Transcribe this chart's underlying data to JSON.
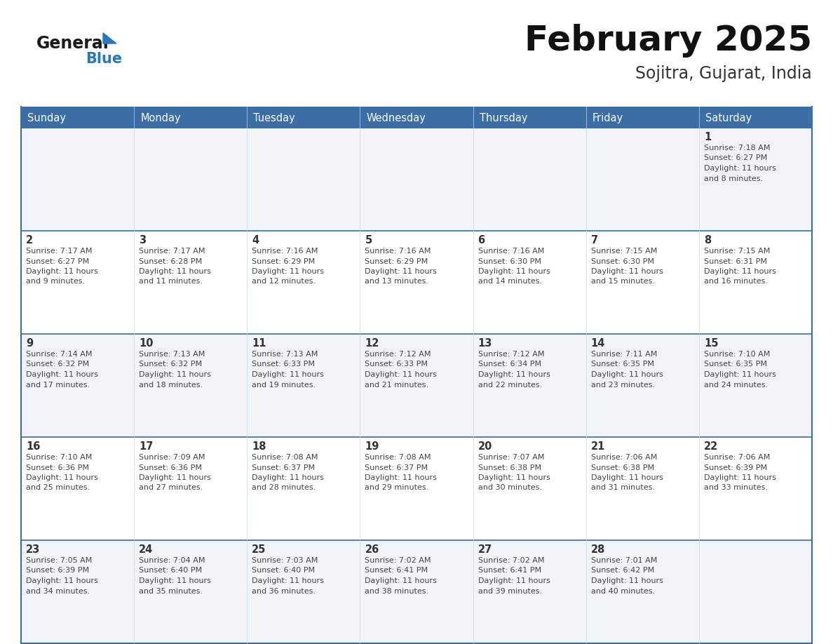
{
  "title": "February 2025",
  "subtitle": "Sojitra, Gujarat, India",
  "days_header": [
    "Sunday",
    "Monday",
    "Tuesday",
    "Wednesday",
    "Thursday",
    "Friday",
    "Saturday"
  ],
  "header_bg": "#3a6ea5",
  "header_text_color": "#ffffff",
  "cell_bg_row0": "#f0f4f8",
  "cell_bg_row1": "#ffffff",
  "cell_bg_row2": "#f0f4f8",
  "cell_bg_row3": "#ffffff",
  "cell_bg_row4": "#f0f4f8",
  "border_color": "#3a6ea5",
  "inner_line_color": "#a0b8d0",
  "day_number_color": "#333333",
  "text_color": "#444444",
  "title_color": "#111111",
  "subtitle_color": "#333333",
  "logo_general_color": "#1a1a1a",
  "logo_blue_color": "#2878be",
  "calendar_data": [
    {
      "day": 1,
      "col": 6,
      "row": 0,
      "sunrise": "7:18 AM",
      "sunset": "6:27 PM",
      "daylight_hours": 11,
      "daylight_minutes": 8
    },
    {
      "day": 2,
      "col": 0,
      "row": 1,
      "sunrise": "7:17 AM",
      "sunset": "6:27 PM",
      "daylight_hours": 11,
      "daylight_minutes": 9
    },
    {
      "day": 3,
      "col": 1,
      "row": 1,
      "sunrise": "7:17 AM",
      "sunset": "6:28 PM",
      "daylight_hours": 11,
      "daylight_minutes": 11
    },
    {
      "day": 4,
      "col": 2,
      "row": 1,
      "sunrise": "7:16 AM",
      "sunset": "6:29 PM",
      "daylight_hours": 11,
      "daylight_minutes": 12
    },
    {
      "day": 5,
      "col": 3,
      "row": 1,
      "sunrise": "7:16 AM",
      "sunset": "6:29 PM",
      "daylight_hours": 11,
      "daylight_minutes": 13
    },
    {
      "day": 6,
      "col": 4,
      "row": 1,
      "sunrise": "7:16 AM",
      "sunset": "6:30 PM",
      "daylight_hours": 11,
      "daylight_minutes": 14
    },
    {
      "day": 7,
      "col": 5,
      "row": 1,
      "sunrise": "7:15 AM",
      "sunset": "6:30 PM",
      "daylight_hours": 11,
      "daylight_minutes": 15
    },
    {
      "day": 8,
      "col": 6,
      "row": 1,
      "sunrise": "7:15 AM",
      "sunset": "6:31 PM",
      "daylight_hours": 11,
      "daylight_minutes": 16
    },
    {
      "day": 9,
      "col": 0,
      "row": 2,
      "sunrise": "7:14 AM",
      "sunset": "6:32 PM",
      "daylight_hours": 11,
      "daylight_minutes": 17
    },
    {
      "day": 10,
      "col": 1,
      "row": 2,
      "sunrise": "7:13 AM",
      "sunset": "6:32 PM",
      "daylight_hours": 11,
      "daylight_minutes": 18
    },
    {
      "day": 11,
      "col": 2,
      "row": 2,
      "sunrise": "7:13 AM",
      "sunset": "6:33 PM",
      "daylight_hours": 11,
      "daylight_minutes": 19
    },
    {
      "day": 12,
      "col": 3,
      "row": 2,
      "sunrise": "7:12 AM",
      "sunset": "6:33 PM",
      "daylight_hours": 11,
      "daylight_minutes": 21
    },
    {
      "day": 13,
      "col": 4,
      "row": 2,
      "sunrise": "7:12 AM",
      "sunset": "6:34 PM",
      "daylight_hours": 11,
      "daylight_minutes": 22
    },
    {
      "day": 14,
      "col": 5,
      "row": 2,
      "sunrise": "7:11 AM",
      "sunset": "6:35 PM",
      "daylight_hours": 11,
      "daylight_minutes": 23
    },
    {
      "day": 15,
      "col": 6,
      "row": 2,
      "sunrise": "7:10 AM",
      "sunset": "6:35 PM",
      "daylight_hours": 11,
      "daylight_minutes": 24
    },
    {
      "day": 16,
      "col": 0,
      "row": 3,
      "sunrise": "7:10 AM",
      "sunset": "6:36 PM",
      "daylight_hours": 11,
      "daylight_minutes": 25
    },
    {
      "day": 17,
      "col": 1,
      "row": 3,
      "sunrise": "7:09 AM",
      "sunset": "6:36 PM",
      "daylight_hours": 11,
      "daylight_minutes": 27
    },
    {
      "day": 18,
      "col": 2,
      "row": 3,
      "sunrise": "7:08 AM",
      "sunset": "6:37 PM",
      "daylight_hours": 11,
      "daylight_minutes": 28
    },
    {
      "day": 19,
      "col": 3,
      "row": 3,
      "sunrise": "7:08 AM",
      "sunset": "6:37 PM",
      "daylight_hours": 11,
      "daylight_minutes": 29
    },
    {
      "day": 20,
      "col": 4,
      "row": 3,
      "sunrise": "7:07 AM",
      "sunset": "6:38 PM",
      "daylight_hours": 11,
      "daylight_minutes": 30
    },
    {
      "day": 21,
      "col": 5,
      "row": 3,
      "sunrise": "7:06 AM",
      "sunset": "6:38 PM",
      "daylight_hours": 11,
      "daylight_minutes": 31
    },
    {
      "day": 22,
      "col": 6,
      "row": 3,
      "sunrise": "7:06 AM",
      "sunset": "6:39 PM",
      "daylight_hours": 11,
      "daylight_minutes": 33
    },
    {
      "day": 23,
      "col": 0,
      "row": 4,
      "sunrise": "7:05 AM",
      "sunset": "6:39 PM",
      "daylight_hours": 11,
      "daylight_minutes": 34
    },
    {
      "day": 24,
      "col": 1,
      "row": 4,
      "sunrise": "7:04 AM",
      "sunset": "6:40 PM",
      "daylight_hours": 11,
      "daylight_minutes": 35
    },
    {
      "day": 25,
      "col": 2,
      "row": 4,
      "sunrise": "7:03 AM",
      "sunset": "6:40 PM",
      "daylight_hours": 11,
      "daylight_minutes": 36
    },
    {
      "day": 26,
      "col": 3,
      "row": 4,
      "sunrise": "7:02 AM",
      "sunset": "6:41 PM",
      "daylight_hours": 11,
      "daylight_minutes": 38
    },
    {
      "day": 27,
      "col": 4,
      "row": 4,
      "sunrise": "7:02 AM",
      "sunset": "6:41 PM",
      "daylight_hours": 11,
      "daylight_minutes": 39
    },
    {
      "day": 28,
      "col": 5,
      "row": 4,
      "sunrise": "7:01 AM",
      "sunset": "6:42 PM",
      "daylight_hours": 11,
      "daylight_minutes": 40
    }
  ]
}
